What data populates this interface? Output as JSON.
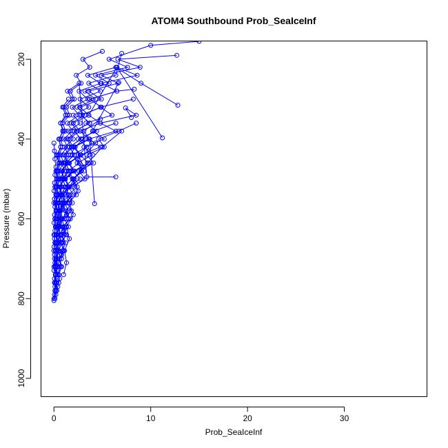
{
  "chart_data": {
    "type": "line",
    "title": "ATOM4 Southbound Prob_SeaIceInf",
    "xlabel": "Prob_SeaIceInf",
    "ylabel": "Pressure (mbar)",
    "xlim": [
      -1.3,
      38.5
    ],
    "ylim": [
      1045,
      155
    ],
    "y_reversed": true,
    "x_ticks": [
      0,
      10,
      20,
      30
    ],
    "y_ticks": [
      200,
      400,
      600,
      800,
      1000
    ],
    "grid": false,
    "legend": "none",
    "series_color": "#0000ff",
    "marker": "open-circle",
    "series": [
      {
        "x": [
          0.0,
          0.05,
          0.1,
          0.05,
          0.0,
          0.1,
          0.05,
          0.0,
          0.05,
          0.1,
          0.0,
          0.05,
          0.1,
          0.05,
          0.0,
          0.05,
          0.1,
          0.2,
          0.1,
          0.05,
          0.0
        ],
        "y": [
          805,
          790,
          770,
          750,
          730,
          710,
          690,
          670,
          650,
          630,
          610,
          590,
          570,
          550,
          530,
          510,
          490,
          470,
          450,
          430,
          410
        ]
      },
      {
        "x": [
          0.1,
          0.2,
          0.3,
          0.2,
          0.4,
          0.3,
          0.5,
          0.4,
          0.3,
          0.6,
          0.5,
          0.7,
          0.9,
          1.2,
          1.6,
          2.1,
          2.8,
          3.5,
          5.0,
          7.0
        ],
        "y": [
          800,
          780,
          760,
          740,
          720,
          700,
          680,
          660,
          640,
          620,
          600,
          580,
          560,
          540,
          520,
          500,
          480,
          460,
          420,
          380
        ]
      },
      {
        "x": [
          0.2,
          0.4,
          0.6,
          0.3,
          0.5,
          0.8,
          0.4,
          0.7,
          1.0,
          0.6,
          1.3,
          0.9,
          1.6,
          1.2,
          2.2,
          1.5,
          2.9,
          2.4,
          3.6,
          4.3
        ],
        "y": [
          790,
          770,
          750,
          730,
          710,
          690,
          670,
          650,
          630,
          610,
          590,
          570,
          550,
          530,
          510,
          490,
          470,
          450,
          430,
          410
        ]
      },
      {
        "x": [
          0.3,
          0.5,
          0.4,
          0.7,
          0.6,
          0.9,
          1.2,
          0.8,
          1.5,
          1.1,
          1.8,
          1.4,
          2.3,
          1.9,
          3.2,
          2.6,
          4.1,
          3.4,
          5.2,
          4.6,
          6.7,
          8.5
        ],
        "y": [
          780,
          760,
          740,
          720,
          700,
          680,
          660,
          640,
          620,
          600,
          580,
          560,
          540,
          520,
          500,
          480,
          460,
          440,
          420,
          400,
          380,
          360
        ]
      },
      {
        "x": [
          0.1,
          0.2,
          0.15,
          0.3,
          0.25,
          0.4,
          0.3,
          0.5,
          0.4,
          0.6,
          0.5,
          0.8,
          0.7,
          1.0,
          1.3,
          1.1,
          1.7,
          2.2,
          3.0,
          4.1,
          6.4
        ],
        "y": [
          760,
          740,
          720,
          700,
          680,
          660,
          640,
          620,
          600,
          580,
          560,
          540,
          520,
          500,
          480,
          460,
          440,
          420,
          400,
          380,
          360
        ]
      },
      {
        "x": [
          0.5,
          0.8,
          0.6,
          1.0,
          0.7,
          1.3,
          0.9,
          1.7,
          1.2,
          0.8,
          1.6,
          1.1,
          2.0,
          1.5,
          2.6,
          1.9,
          3.4,
          2.5,
          4.4,
          3.3,
          6.0,
          4.8,
          8.2
        ],
        "y": [
          740,
          720,
          700,
          680,
          660,
          640,
          620,
          600,
          580,
          560,
          540,
          520,
          500,
          480,
          460,
          440,
          420,
          400,
          380,
          360,
          340,
          320,
          300
        ]
      },
      {
        "x": [
          0.0,
          0.1,
          0.0,
          0.2,
          0.1,
          0.3,
          0.2,
          0.4,
          0.3,
          0.5,
          0.4,
          0.7,
          0.5,
          0.9,
          0.7,
          1.2,
          0.9,
          1.6,
          1.3,
          2.1,
          1.7,
          2.8,
          2.3,
          3.7,
          3.0,
          5.0
        ],
        "y": [
          680,
          660,
          640,
          620,
          600,
          580,
          560,
          540,
          520,
          500,
          480,
          460,
          440,
          420,
          400,
          380,
          360,
          340,
          320,
          300,
          280,
          260,
          240,
          220,
          200,
          180
        ]
      },
      {
        "x": [
          0.2,
          0.4,
          0.3,
          0.6,
          0.4,
          0.8,
          0.6,
          1.1,
          0.8,
          1.5,
          1.1,
          2.0,
          1.5,
          2.7,
          2.0,
          3.6,
          2.7,
          4.9,
          3.6,
          6.6,
          4.9,
          8.9,
          6.6,
          12.7
        ],
        "y": [
          640,
          620,
          600,
          580,
          560,
          540,
          520,
          500,
          480,
          460,
          440,
          420,
          400,
          380,
          360,
          340,
          320,
          300,
          280,
          260,
          240,
          220,
          200,
          190
        ]
      },
      {
        "x": [
          0.1,
          0.3,
          0.2,
          0.5,
          0.3,
          0.7,
          0.5,
          1.0,
          0.7,
          1.4,
          1.0,
          1.9,
          1.4,
          2.6,
          1.9,
          3.5,
          2.6,
          4.8,
          3.5,
          6.4,
          9.0,
          12.8
        ],
        "y": [
          600,
          580,
          560,
          540,
          520,
          500,
          480,
          460,
          440,
          420,
          400,
          380,
          360,
          340,
          320,
          300,
          280,
          260,
          240,
          220,
          260,
          315
        ]
      },
      {
        "x": [
          0.6,
          0.9,
          0.7,
          1.2,
          0.9,
          1.6,
          1.2,
          2.1,
          1.6,
          2.8,
          2.1,
          3.7,
          2.8,
          4.9,
          3.7,
          6.5,
          4.9,
          8.6,
          6.5,
          11.2
        ],
        "y": [
          580,
          560,
          540,
          520,
          500,
          480,
          460,
          440,
          420,
          400,
          380,
          360,
          340,
          320,
          300,
          280,
          260,
          240,
          220,
          397
        ]
      },
      {
        "x": [
          0.0,
          0.2,
          0.1,
          0.3,
          0.2,
          0.5,
          0.3,
          0.7,
          0.5,
          1.0,
          0.7,
          1.4,
          1.0,
          1.9,
          1.4,
          2.6,
          3.4,
          6.4
        ],
        "y": [
          560,
          540,
          520,
          500,
          480,
          460,
          440,
          420,
          400,
          380,
          360,
          340,
          320,
          300,
          280,
          260,
          495,
          495
        ]
      },
      {
        "x": [
          0.3,
          0.5,
          0.4,
          0.7,
          0.5,
          0.9,
          0.7,
          1.2,
          0.9,
          1.6,
          1.2,
          2.1,
          1.6,
          2.8,
          2.1,
          3.7,
          4.2
        ],
        "y": [
          700,
          680,
          660,
          640,
          620,
          600,
          580,
          560,
          540,
          520,
          500,
          480,
          460,
          440,
          420,
          400,
          562
        ]
      },
      {
        "x": [
          0.4,
          0.6,
          0.5,
          0.8,
          0.6,
          1.1,
          0.8,
          1.5,
          1.1,
          2.0,
          1.5,
          2.7,
          2.0,
          3.6,
          2.7,
          4.8,
          3.6,
          6.4,
          4.8,
          8.5,
          7.4,
          8.0
        ],
        "y": [
          720,
          700,
          680,
          660,
          640,
          620,
          600,
          580,
          560,
          540,
          520,
          500,
          480,
          460,
          440,
          420,
          400,
          380,
          360,
          340,
          322,
          346
        ]
      },
      {
        "x": [
          0.2,
          0.3,
          0.25,
          0.4,
          0.3,
          0.6,
          0.4,
          0.8,
          0.6,
          1.1,
          0.8,
          1.5,
          1.1,
          2.0,
          1.5,
          2.7,
          2.0,
          3.6,
          2.7,
          4.8,
          3.6,
          6.4,
          7.0
        ],
        "y": [
          660,
          640,
          620,
          600,
          580,
          560,
          540,
          520,
          500,
          480,
          460,
          440,
          420,
          400,
          380,
          360,
          340,
          320,
          300,
          280,
          260,
          240,
          185
        ]
      },
      {
        "x": [
          0.0,
          0.1,
          0.05,
          0.15,
          0.1,
          0.2,
          0.15,
          0.3,
          0.2,
          0.4,
          0.3,
          0.55,
          0.4,
          0.75,
          0.55,
          1.0,
          0.75,
          1.35,
          1.0,
          1.8,
          1.35,
          2.4,
          1.8,
          3.2,
          2.4,
          4.3,
          3.2,
          5.7,
          4.3,
          7.6,
          5.7,
          10.0,
          15.0
        ],
        "y": [
          800,
          780,
          760,
          740,
          720,
          700,
          680,
          660,
          640,
          620,
          600,
          580,
          560,
          540,
          520,
          500,
          480,
          460,
          440,
          420,
          400,
          380,
          360,
          340,
          320,
          300,
          280,
          260,
          240,
          220,
          200,
          165,
          155
        ]
      },
      {
        "x": [
          0.5,
          0.7,
          0.6,
          0.9,
          0.7,
          1.2,
          0.9,
          1.6,
          1.2,
          2.1,
          1.6,
          2.8,
          2.1,
          3.7,
          2.8,
          4.9,
          3.7,
          6.5,
          8.3
        ],
        "y": [
          620,
          600,
          580,
          560,
          540,
          520,
          500,
          480,
          460,
          440,
          420,
          400,
          380,
          360,
          340,
          320,
          300,
          280,
          275
        ]
      },
      {
        "x": [
          0.1,
          0.2,
          0.15,
          0.3,
          0.2,
          0.45,
          0.3,
          0.6,
          0.45,
          0.8,
          0.6,
          1.1,
          0.8,
          1.5,
          1.1,
          2.0,
          1.5,
          2.7,
          2.0,
          3.6,
          2.7,
          4.8,
          3.6,
          6.5
        ],
        "y": [
          780,
          760,
          740,
          720,
          700,
          680,
          660,
          640,
          620,
          600,
          580,
          560,
          540,
          520,
          500,
          480,
          460,
          440,
          420,
          400,
          380,
          360,
          340,
          220
        ]
      },
      {
        "x": [
          0.8,
          1.0,
          0.9,
          1.2,
          1.0,
          1.5,
          1.2,
          1.9,
          1.5,
          2.4,
          1.9,
          3.1,
          2.4,
          4.0,
          3.1,
          5.2,
          4.0,
          6.7
        ],
        "y": [
          700,
          680,
          660,
          640,
          620,
          600,
          580,
          560,
          540,
          520,
          500,
          480,
          460,
          440,
          420,
          400,
          380,
          258
        ]
      },
      {
        "x": [
          0.0,
          0.05,
          0.0,
          0.1,
          0.05,
          0.15,
          0.1,
          0.2,
          0.15,
          0.3,
          0.2,
          0.4,
          0.3,
          0.55,
          0.4,
          0.7,
          0.55,
          0.9,
          0.7,
          1.2,
          0.9,
          1.5
        ],
        "y": [
          720,
          700,
          680,
          660,
          640,
          620,
          600,
          580,
          560,
          540,
          520,
          500,
          480,
          460,
          440,
          420,
          400,
          380,
          360,
          340,
          320,
          300
        ]
      },
      {
        "x": [
          1.0,
          1.3,
          1.1,
          1.6,
          1.3,
          2.0,
          1.6,
          2.5,
          2.0,
          3.1,
          2.5,
          3.9,
          3.1,
          4.8
        ],
        "y": [
          740,
          710,
          680,
          650,
          620,
          590,
          560,
          530,
          500,
          470,
          440,
          410,
          380,
          350
        ]
      }
    ]
  }
}
